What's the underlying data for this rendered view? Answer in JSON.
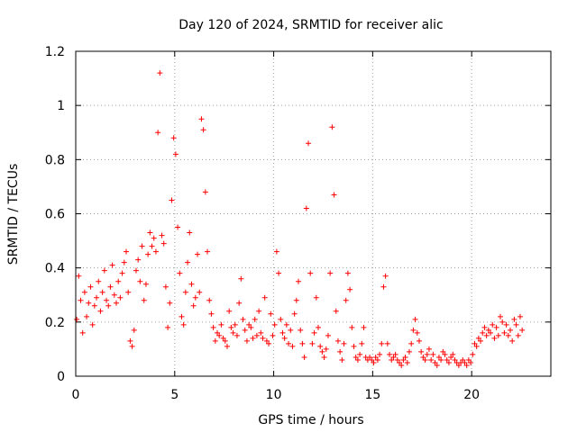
{
  "chart_data": {
    "type": "scatter",
    "title": "Day 120 of 2024, SRMTID for receiver alic",
    "xlabel": "GPS time / hours",
    "ylabel": "SRMTID / TECUs",
    "xlim": [
      0,
      24
    ],
    "ylim": [
      0,
      1.2
    ],
    "x_ticks": [
      0,
      5,
      10,
      15,
      20
    ],
    "x_tick_labels": [
      "0",
      "5",
      "10",
      "15",
      "20"
    ],
    "y_ticks": [
      0,
      0.2,
      0.4,
      0.6,
      0.8,
      1.0,
      1.2
    ],
    "y_tick_labels": [
      "0",
      "0.2",
      "0.4",
      "0.6",
      "0.8",
      "1",
      "1.2"
    ],
    "grid": true,
    "marker": "plus",
    "color": "#ff0000",
    "x_hours_start": 0.05,
    "x_hours_step": 0.1,
    "series": [
      {
        "name": "SRMTID",
        "values": [
          0.21,
          0.37,
          0.28,
          0.16,
          0.31,
          0.22,
          0.27,
          0.33,
          0.19,
          0.26,
          0.29,
          0.35,
          0.24,
          0.31,
          0.39,
          0.28,
          0.26,
          0.33,
          0.41,
          0.3,
          0.27,
          0.35,
          0.29,
          0.38,
          0.42,
          0.46,
          0.31,
          0.13,
          0.11,
          0.17,
          0.39,
          0.43,
          0.35,
          0.48,
          0.28,
          0.34,
          0.45,
          0.53,
          0.48,
          0.51,
          0.46,
          0.9,
          1.12,
          0.52,
          0.49,
          0.33,
          0.18,
          0.27,
          0.65,
          0.88,
          0.82,
          0.55,
          0.38,
          0.22,
          0.19,
          0.31,
          0.42,
          0.53,
          0.34,
          0.26,
          0.29,
          0.45,
          0.31,
          0.95,
          0.91,
          0.68,
          0.46,
          0.28,
          0.23,
          0.18,
          0.13,
          0.16,
          0.15,
          0.19,
          0.14,
          0.13,
          0.11,
          0.24,
          0.18,
          0.16,
          0.19,
          0.15,
          0.27,
          0.36,
          0.21,
          0.17,
          0.13,
          0.19,
          0.18,
          0.14,
          0.21,
          0.15,
          0.24,
          0.16,
          0.14,
          0.29,
          0.13,
          0.12,
          0.23,
          0.15,
          0.19,
          0.46,
          0.38,
          0.21,
          0.16,
          0.14,
          0.19,
          0.12,
          0.17,
          0.11,
          0.23,
          0.28,
          0.35,
          0.17,
          0.12,
          0.07,
          0.62,
          0.86,
          0.38,
          0.12,
          0.16,
          0.29,
          0.18,
          0.11,
          0.09,
          0.07,
          0.1,
          0.15,
          0.38,
          0.92,
          0.67,
          0.24,
          0.13,
          0.09,
          0.06,
          0.12,
          0.28,
          0.38,
          0.32,
          0.18,
          0.11,
          0.07,
          0.06,
          0.08,
          0.12,
          0.18,
          0.07,
          0.06,
          0.07,
          0.06,
          0.05,
          0.07,
          0.06,
          0.08,
          0.12,
          0.33,
          0.37,
          0.12,
          0.08,
          0.06,
          0.07,
          0.08,
          0.06,
          0.05,
          0.04,
          0.06,
          0.07,
          0.05,
          0.09,
          0.12,
          0.17,
          0.21,
          0.16,
          0.13,
          0.09,
          0.07,
          0.06,
          0.08,
          0.1,
          0.06,
          0.08,
          0.05,
          0.04,
          0.07,
          0.06,
          0.09,
          0.08,
          0.06,
          0.05,
          0.07,
          0.08,
          0.06,
          0.05,
          0.04,
          0.05,
          0.06,
          0.05,
          0.04,
          0.06,
          0.05,
          0.08,
          0.12,
          0.11,
          0.14,
          0.13,
          0.16,
          0.18,
          0.15,
          0.17,
          0.16,
          0.19,
          0.14,
          0.18,
          0.15,
          0.22,
          0.2,
          0.16,
          0.19,
          0.15,
          0.17,
          0.13,
          0.21,
          0.19,
          0.15,
          0.22,
          0.17
        ]
      }
    ]
  }
}
